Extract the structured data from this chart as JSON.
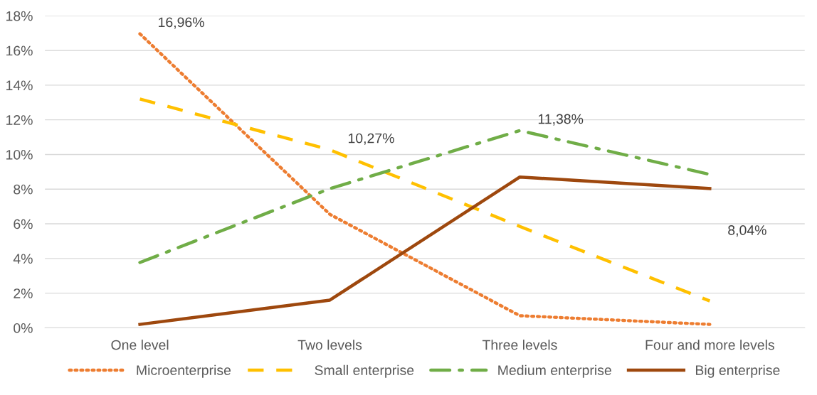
{
  "chart_data": {
    "type": "line",
    "categories": [
      "One level",
      "Two levels",
      "Three levels",
      "Four and more levels"
    ],
    "series": [
      {
        "name": "Microenterprise",
        "color": "#ed7d31",
        "line_style": "dotted",
        "values": [
          16.96,
          6.55,
          0.7,
          0.2
        ],
        "value_labels": [
          "16,96%",
          null,
          null,
          null
        ]
      },
      {
        "name": "Small enterprise",
        "color": "#ffc000",
        "line_style": "dashed",
        "values": [
          13.2,
          10.27,
          5.85,
          1.55
        ],
        "value_labels": [
          null,
          "10,27%",
          null,
          null
        ]
      },
      {
        "name": "Medium enterprise",
        "color": "#70ad47",
        "line_style": "dashdot",
        "values": [
          3.77,
          8.03,
          11.38,
          8.85
        ],
        "value_labels": [
          null,
          null,
          "11,38%",
          null
        ]
      },
      {
        "name": "Big enterprise",
        "color": "#9e480e",
        "line_style": "solid",
        "values": [
          0.2,
          1.6,
          8.7,
          8.04
        ],
        "value_labels": [
          null,
          null,
          null,
          "8,04%"
        ]
      }
    ],
    "ylim": [
      0,
      18
    ],
    "yticks": [
      {
        "value": 0,
        "label": "0%"
      },
      {
        "value": 2,
        "label": "2%"
      },
      {
        "value": 4,
        "label": "4%"
      },
      {
        "value": 6,
        "label": "6%"
      },
      {
        "value": 8,
        "label": "8%"
      },
      {
        "value": 10,
        "label": "10%"
      },
      {
        "value": 12,
        "label": "12%"
      },
      {
        "value": 14,
        "label": "14%"
      },
      {
        "value": 16,
        "label": "16%"
      },
      {
        "value": 18,
        "label": "18%"
      }
    ],
    "grid": "y",
    "legend": "bottom",
    "marker": "none"
  }
}
